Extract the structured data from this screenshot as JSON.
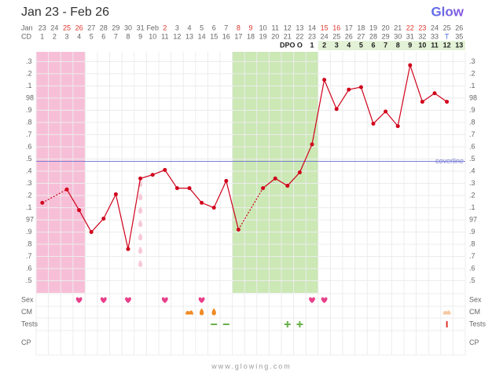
{
  "title": "Jan 23 - Feb 26",
  "logo": "Glow",
  "footer": "www.glowing.com",
  "chart_data": {
    "type": "line",
    "month_label": "Jan",
    "dates": [
      "23",
      "24",
      "25",
      "26",
      "27",
      "28",
      "29",
      "30",
      "31",
      "Feb",
      "2",
      "3",
      "4",
      "5",
      "6",
      "7",
      "8",
      "9",
      "10",
      "11",
      "12",
      "13",
      "14",
      "15",
      "16",
      "17",
      "18",
      "19",
      "20",
      "21",
      "22",
      "23",
      "24",
      "25",
      "26"
    ],
    "weekend_index": [
      2,
      3,
      10,
      16,
      17,
      23,
      24,
      30,
      31
    ],
    "weekend_color": "#e0352b",
    "cd_label": "CD",
    "cd": [
      "1",
      "2",
      "3",
      "4",
      "5",
      "6",
      "7",
      "8",
      "9",
      "10",
      "11",
      "12",
      "13",
      "14",
      "15",
      "16",
      "17",
      "18",
      "19",
      "20",
      "21",
      "22",
      "23",
      "24",
      "25",
      "26",
      "27",
      "28",
      "29",
      "30",
      "31",
      "32",
      "33",
      "T",
      "35"
    ],
    "today_index": 33,
    "today_color": "#4a6ee0",
    "dpo_label": "DPO",
    "dpo_start_cd": 22,
    "dpo": [
      "O",
      "1",
      "2",
      "3",
      "4",
      "5",
      "6",
      "7",
      "8",
      "9",
      "10",
      "11",
      "12",
      "13"
    ],
    "dpo_highlight_cd": [
      24,
      35
    ],
    "dpo_highlight_color": "#e3f2d6",
    "ylim": [
      96.4,
      98.38
    ],
    "yticks": [
      {
        "value": 98.3,
        "label": ".3"
      },
      {
        "value": 98.2,
        "label": ".2"
      },
      {
        "value": 98.1,
        "label": ".1"
      },
      98,
      {
        "value": 97.9,
        "label": ".9"
      },
      {
        "value": 97.8,
        "label": ".8"
      },
      {
        "value": 97.7,
        "label": ".7"
      },
      {
        "value": 97.6,
        "label": ".6"
      },
      {
        "value": 97.5,
        "label": ".5"
      },
      {
        "value": 97.4,
        "label": ".4"
      },
      {
        "value": 97.3,
        "label": ".3"
      },
      {
        "value": 97.2,
        "label": ".2"
      },
      {
        "value": 97.1,
        "label": ".1"
      },
      97,
      {
        "value": 96.9,
        "label": ".9"
      },
      {
        "value": 96.8,
        "label": ".8"
      },
      {
        "value": 96.7,
        "label": ".7"
      },
      {
        "value": 96.6,
        "label": ".6"
      },
      {
        "value": 96.5,
        "label": ".5"
      }
    ],
    "grid": true,
    "series": [
      {
        "color": "#d0021b",
        "values": [
          97.14,
          null,
          97.25,
          97.08,
          96.9,
          97.01,
          97.21,
          96.76,
          97.34,
          97.37,
          97.41,
          97.26,
          97.26,
          97.14,
          97.1,
          97.32,
          96.92,
          null,
          97.26,
          97.34,
          97.28,
          97.39,
          97.62,
          98.15,
          97.91,
          98.07,
          98.09,
          97.79,
          97.89,
          97.77,
          98.27,
          97.97,
          98.04,
          97.97,
          null
        ]
      }
    ],
    "coverline": {
      "label": "coverline",
      "value": 97.48,
      "color": "#7b7fd6"
    },
    "period_cd": [
      1,
      4
    ],
    "period_color": "#f7bfd7",
    "fertile_cd": [
      17,
      23
    ],
    "fertile_color": "#cbe8b5",
    "spotting_cd": [
      9
    ],
    "spotting_color": "#f6c9d8",
    "rows": [
      {
        "label": "Sex",
        "cd": [
          4,
          6,
          8,
          11,
          14,
          23,
          24
        ],
        "marker": [
          "heart",
          "heart",
          "heart",
          "heart",
          "heart",
          "heart",
          "heart"
        ],
        "color": [
          "#e8408a",
          "#e8408a",
          "#e8408a",
          "#e8408a",
          "#e8408a",
          "#e8408a",
          "#e8408a"
        ]
      },
      {
        "label": "CM",
        "cd": [
          13,
          14,
          15,
          34
        ],
        "marker": [
          "blob",
          "drop",
          "drop",
          "blob"
        ],
        "color": [
          "#f08a24",
          "#f08a24",
          "#f08a24",
          "#f5c9a0"
        ]
      },
      {
        "label": "Tests",
        "cd": [
          15,
          16,
          21,
          22,
          34
        ],
        "marker": [
          "minus",
          "minus",
          "plus",
          "plus",
          "bar"
        ],
        "color": [
          "#6ab04c",
          "#6ab04c",
          "#6ab04c",
          "#6ab04c",
          "#e0352b"
        ]
      },
      {
        "label": "CP",
        "cd": [],
        "marker": [],
        "color": []
      }
    ]
  }
}
